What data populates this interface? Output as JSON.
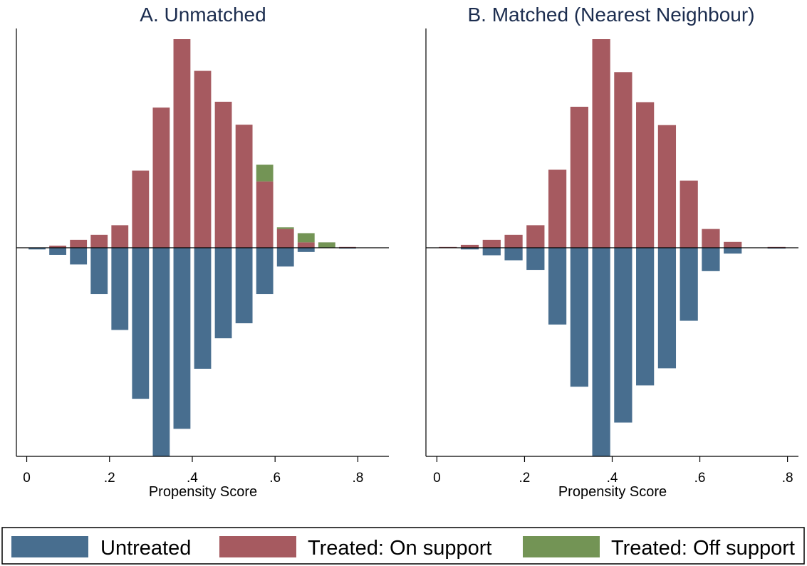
{
  "colors": {
    "untreated": "#486e8f",
    "treated_on": "#a65a60",
    "treated_off": "#739455",
    "title": "#1c2d4f"
  },
  "legend": {
    "items": [
      {
        "label": "Untreated",
        "color_key": "untreated"
      },
      {
        "label": "Treated: On support",
        "color_key": "treated_on"
      },
      {
        "label": "Treated: Off support",
        "color_key": "treated_off"
      }
    ]
  },
  "chart_data": [
    {
      "type": "bar",
      "title": "A. Unmatched",
      "xlabel": "Propensity Score",
      "ylabel": "",
      "xlim": [
        -0.025,
        0.875
      ],
      "ylim": [
        -0.5,
        0.5
      ],
      "x_ticks": [
        "0",
        ".2",
        ".4",
        ".6",
        ".8"
      ],
      "x_tick_values": [
        0,
        0.2,
        0.4,
        0.6,
        0.8
      ],
      "bin_centers": [
        0.025,
        0.075,
        0.125,
        0.175,
        0.225,
        0.275,
        0.325,
        0.375,
        0.425,
        0.475,
        0.525,
        0.575,
        0.625,
        0.675,
        0.725,
        0.775
      ],
      "series": [
        {
          "name": "Treated: On support",
          "color_key": "treated_on",
          "values": [
            0,
            0.005,
            0.019,
            0.031,
            0.054,
            0.185,
            0.336,
            0.5,
            0.424,
            0.35,
            0.295,
            0.159,
            0.045,
            0.013,
            0,
            0.002
          ]
        },
        {
          "name": "Treated: Off support",
          "color_key": "treated_off",
          "values": [
            0,
            0,
            0,
            0,
            0,
            0,
            0,
            0,
            0,
            0,
            0,
            0.04,
            0.004,
            0.022,
            0.013,
            0
          ]
        },
        {
          "name": "Untreated",
          "color_key": "untreated",
          "values": [
            -0.004,
            -0.017,
            -0.04,
            -0.111,
            -0.197,
            -0.362,
            -0.5,
            -0.434,
            -0.29,
            -0.217,
            -0.181,
            -0.111,
            -0.045,
            -0.01,
            0,
            -0.002
          ]
        }
      ]
    },
    {
      "type": "bar",
      "title": "B. Matched (Nearest Neighbour)",
      "xlabel": "Propensity Score",
      "ylabel": "",
      "xlim": [
        -0.025,
        0.825
      ],
      "ylim": [
        -0.5,
        0.5
      ],
      "x_ticks": [
        "0",
        ".2",
        ".4",
        ".6",
        ".8"
      ],
      "x_tick_values": [
        0,
        0.2,
        0.4,
        0.6,
        0.8
      ],
      "bin_centers": [
        0.025,
        0.075,
        0.125,
        0.175,
        0.225,
        0.275,
        0.325,
        0.375,
        0.425,
        0.475,
        0.525,
        0.575,
        0.625,
        0.675,
        0.725,
        0.775
      ],
      "series": [
        {
          "name": "Treated: On support",
          "color_key": "treated_on",
          "values": [
            0.002,
            0.007,
            0.019,
            0.031,
            0.054,
            0.187,
            0.338,
            0.5,
            0.421,
            0.349,
            0.294,
            0.161,
            0.045,
            0.014,
            0,
            0.002
          ]
        },
        {
          "name": "Untreated",
          "color_key": "untreated",
          "values": [
            0,
            -0.004,
            -0.018,
            -0.03,
            -0.053,
            -0.184,
            -0.333,
            -0.5,
            -0.419,
            -0.33,
            -0.289,
            -0.175,
            -0.056,
            -0.014,
            0,
            -0.002
          ]
        }
      ]
    }
  ]
}
